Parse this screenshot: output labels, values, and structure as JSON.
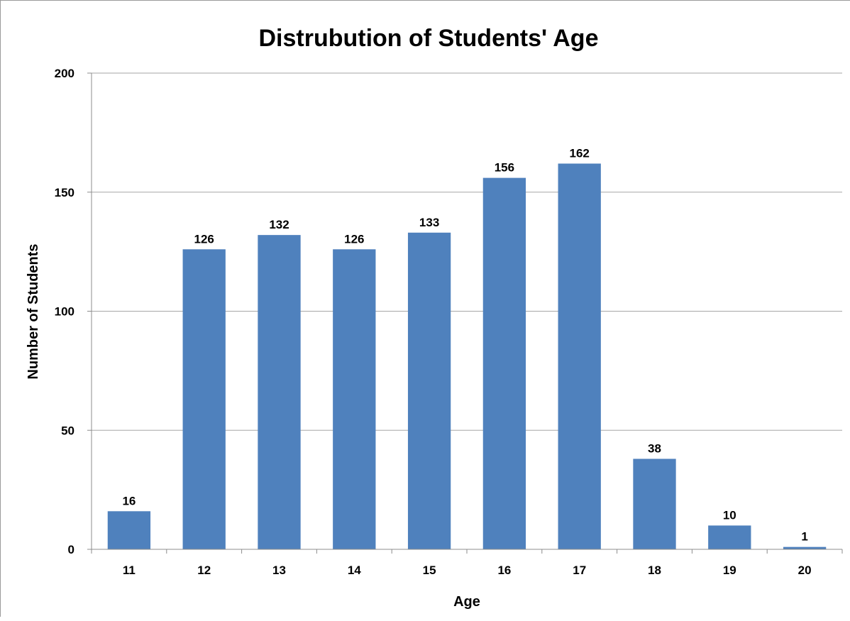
{
  "chart_data": {
    "type": "bar",
    "title": "Distrubution of Students' Age",
    "xlabel": "Age",
    "ylabel": "Number of Students",
    "categories": [
      "11",
      "12",
      "13",
      "14",
      "15",
      "16",
      "17",
      "18",
      "19",
      "20"
    ],
    "values": [
      16,
      126,
      132,
      126,
      133,
      156,
      162,
      38,
      10,
      1
    ],
    "ylim": [
      0,
      200
    ],
    "yticks": [
      "0",
      "50",
      "100",
      "150",
      "200"
    ],
    "grid": true,
    "legend": "none",
    "bar_color": "#4F81BD",
    "grid_color": "#A6A6A6"
  }
}
